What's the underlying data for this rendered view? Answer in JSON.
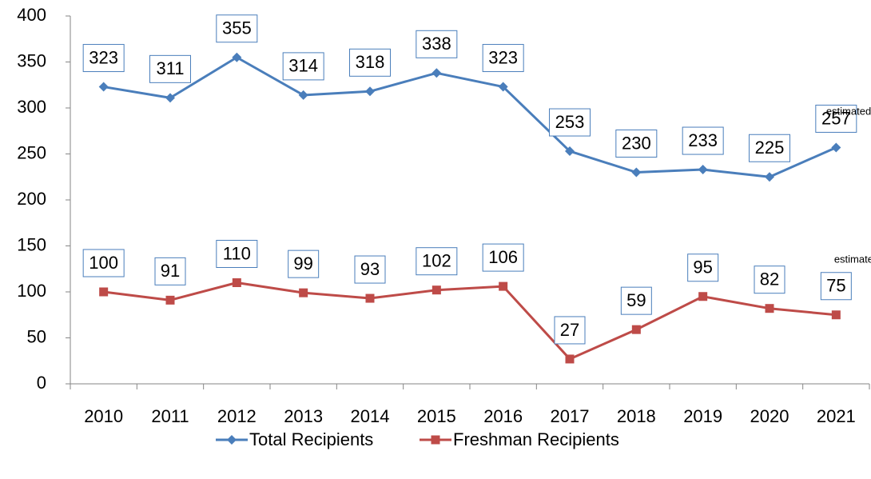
{
  "chart_data": {
    "type": "line",
    "categories": [
      "2010",
      "2011",
      "2012",
      "2013",
      "2014",
      "2015",
      "2016",
      "2017",
      "2018",
      "2019",
      "2020",
      "2021"
    ],
    "series": [
      {
        "name": "Total Recipients",
        "color": "#4a7ebb",
        "marker": "diamond",
        "values": [
          323,
          311,
          355,
          314,
          318,
          338,
          323,
          253,
          230,
          233,
          225,
          257
        ]
      },
      {
        "name": "Freshman Recipients",
        "color": "#be4b48",
        "marker": "square",
        "values": [
          100,
          91,
          110,
          99,
          93,
          102,
          106,
          27,
          59,
          95,
          82,
          75
        ]
      }
    ],
    "ylim": [
      0,
      400
    ],
    "yticks": [
      0,
      50,
      100,
      150,
      200,
      250,
      300,
      350,
      400
    ],
    "grid": false,
    "legend": "bottom",
    "annotations": [
      "estimated",
      "estimated"
    ]
  }
}
